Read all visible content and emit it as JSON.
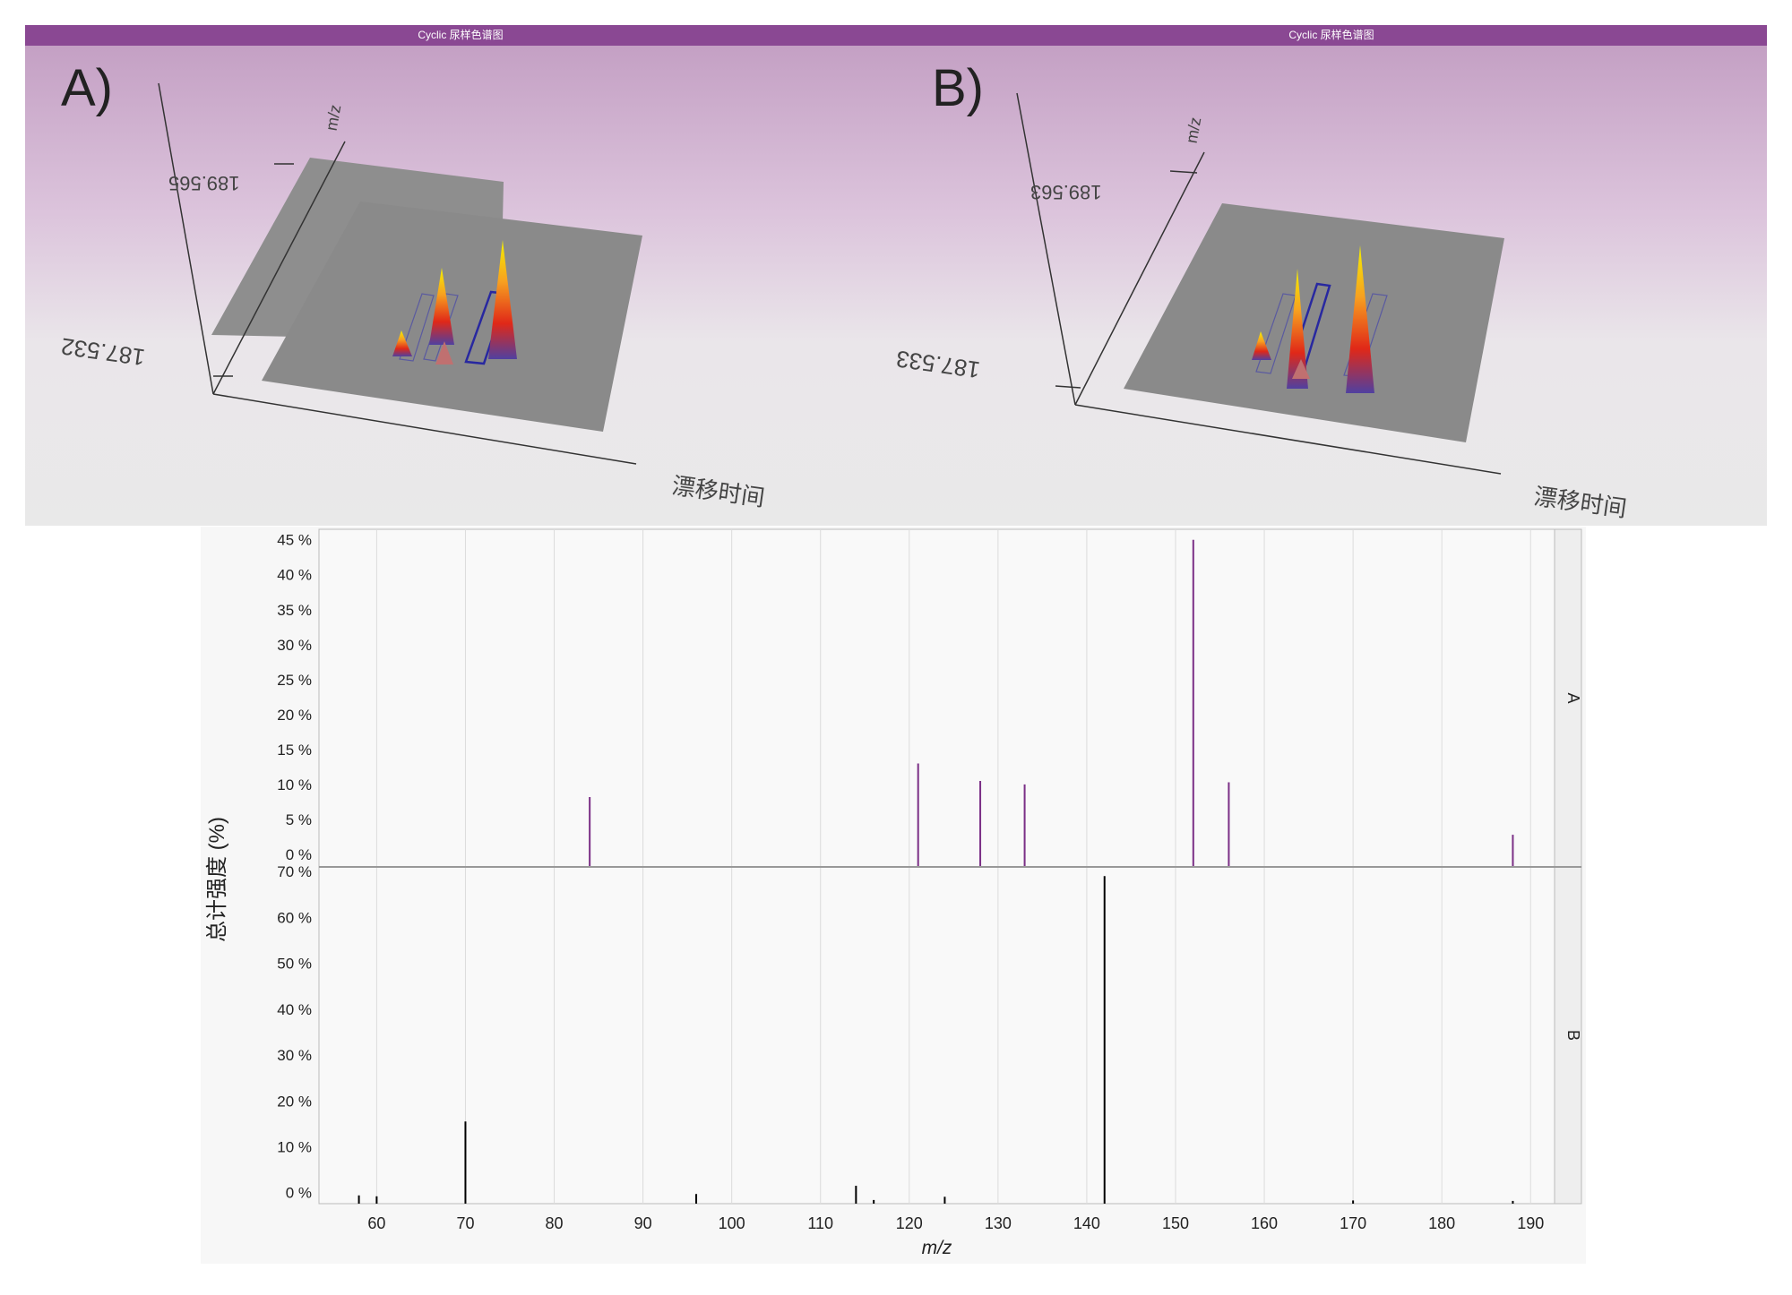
{
  "panels": [
    {
      "title": "Cyclic 尿样色谱图",
      "label": "A)",
      "mz_high": "189.565",
      "mz_low": "187.532",
      "mz_axis": "m/z",
      "drift_axis": "漂移时间"
    },
    {
      "title": "Cyclic 尿样色谱图",
      "label": "B)",
      "mz_high": "189.563",
      "mz_low": "187.533",
      "mz_axis": "m/z",
      "drift_axis": "漂移时间"
    }
  ],
  "chart_data": {
    "type": "bar",
    "xlabel": "m/z",
    "ylabel": "总计强度 (%)",
    "xlim": [
      53.5,
      192.7
    ],
    "xticks": [
      60,
      70,
      80,
      90,
      100,
      110,
      120,
      130,
      140,
      150,
      160,
      170,
      180,
      190
    ],
    "grid": true,
    "panels": [
      {
        "name": "A",
        "color": "#7b2f86",
        "ylim": [
          -1.8,
          46.5
        ],
        "yticks": [
          0,
          5,
          10,
          15,
          20,
          25,
          30,
          35,
          40,
          45
        ],
        "peaks": [
          [
            84,
            8.2
          ],
          [
            121,
            13
          ],
          [
            128,
            10.5
          ],
          [
            133,
            10
          ],
          [
            152,
            45
          ],
          [
            156,
            10.3
          ],
          [
            188,
            2.8
          ]
        ]
      },
      {
        "name": "B",
        "color": "#000000",
        "ylim": [
          -2.4,
          71
        ],
        "yticks": [
          0,
          10,
          20,
          30,
          40,
          50,
          60,
          70
        ],
        "peaks": [
          [
            58,
            -0.6
          ],
          [
            60,
            -0.8
          ],
          [
            70,
            15.5
          ],
          [
            96,
            -0.3
          ],
          [
            114,
            1.5
          ],
          [
            116,
            -1.6
          ],
          [
            124,
            -0.9
          ],
          [
            142,
            69
          ],
          [
            170,
            -1.7
          ],
          [
            188,
            -1.8
          ]
        ]
      }
    ]
  }
}
